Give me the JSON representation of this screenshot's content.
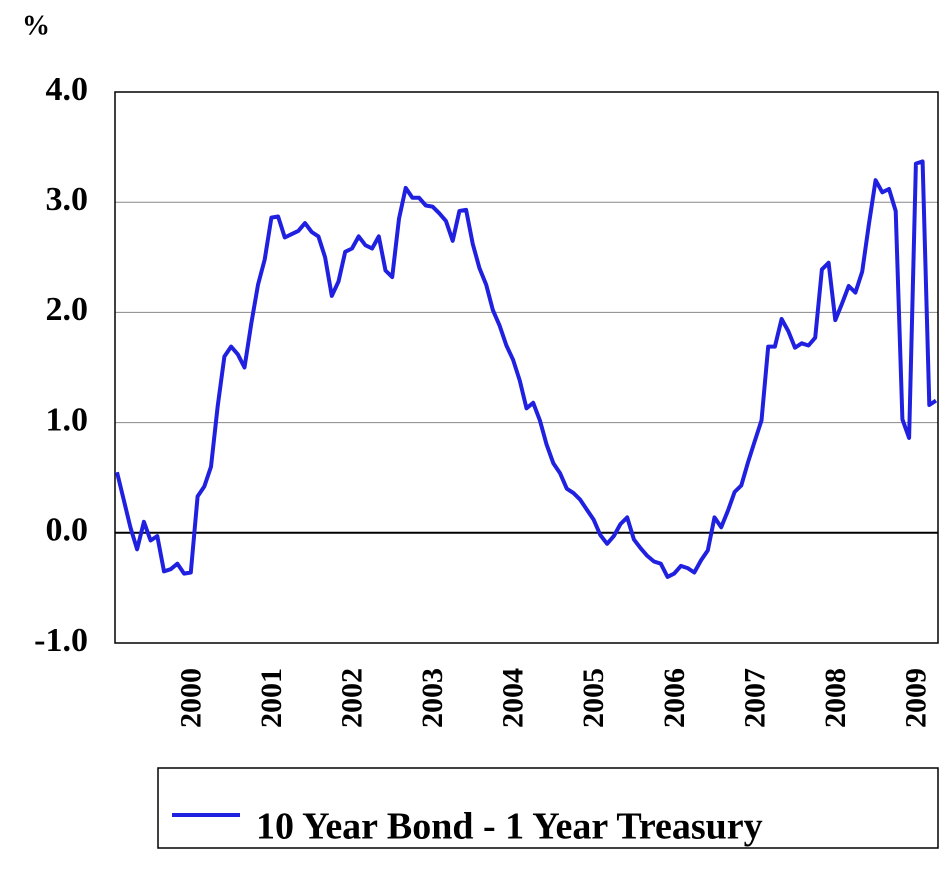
{
  "chart_data": {
    "type": "line",
    "ylabel": "%",
    "categories": [
      null,
      null,
      null,
      null,
      null,
      null,
      null,
      null,
      null,
      null,
      null,
      null,
      "2000",
      null,
      null,
      null,
      null,
      null,
      null,
      null,
      null,
      null,
      null,
      null,
      "2001",
      null,
      null,
      null,
      null,
      null,
      null,
      null,
      null,
      null,
      null,
      null,
      "2002",
      null,
      null,
      null,
      null,
      null,
      null,
      null,
      null,
      null,
      null,
      null,
      "2003",
      null,
      null,
      null,
      null,
      null,
      null,
      null,
      null,
      null,
      null,
      null,
      "2004",
      null,
      null,
      null,
      null,
      null,
      null,
      null,
      null,
      null,
      null,
      null,
      "2005",
      null,
      null,
      null,
      null,
      null,
      null,
      null,
      null,
      null,
      null,
      null,
      "2006",
      null,
      null,
      null,
      null,
      null,
      null,
      null,
      null,
      null,
      null,
      null,
      "2007",
      null,
      null,
      null,
      null,
      null,
      null,
      null,
      null,
      null,
      null,
      null,
      "2008",
      null,
      null,
      null,
      null,
      null,
      null,
      null,
      null,
      null,
      null,
      null,
      "2009",
      null,
      null
    ],
    "series": [
      {
        "name": "10 Year Bond - 1 Year Treasury",
        "color": "#2020e0",
        "values": [
          0.55,
          0.3,
          0.05,
          -0.15,
          0.1,
          -0.07,
          -0.03,
          -0.35,
          -0.33,
          -0.28,
          -0.37,
          -0.36,
          0.33,
          0.42,
          0.6,
          1.15,
          1.6,
          1.69,
          1.62,
          1.5,
          1.9,
          2.25,
          2.48,
          2.86,
          2.87,
          2.68,
          2.71,
          2.74,
          2.81,
          2.73,
          2.69,
          2.5,
          2.15,
          2.28,
          2.55,
          2.58,
          2.69,
          2.61,
          2.58,
          2.69,
          2.38,
          2.32,
          2.85,
          3.13,
          3.04,
          3.04,
          2.97,
          2.96,
          2.9,
          2.83,
          2.65,
          2.92,
          2.93,
          2.62,
          2.4,
          2.25,
          2.02,
          1.88,
          1.7,
          1.57,
          1.38,
          1.13,
          1.18,
          1.02,
          0.8,
          0.63,
          0.54,
          0.4,
          0.36,
          0.3,
          0.21,
          0.12,
          -0.02,
          -0.1,
          -0.03,
          0.08,
          0.14,
          -0.06,
          -0.14,
          -0.21,
          -0.26,
          -0.28,
          -0.4,
          -0.37,
          -0.3,
          -0.32,
          -0.36,
          -0.25,
          -0.16,
          0.14,
          0.05,
          0.2,
          0.37,
          0.43,
          0.64,
          0.83,
          1.02,
          1.69,
          1.69,
          1.94,
          1.83,
          1.68,
          1.72,
          1.7,
          1.77,
          2.39,
          2.45,
          1.93,
          2.08,
          2.24,
          2.18,
          2.37,
          2.8,
          3.2,
          3.09,
          3.12,
          2.92,
          1.03,
          0.86,
          3.35,
          3.37,
          1.16,
          1.2
        ]
      }
    ],
    "ylim": [
      -1,
      4
    ],
    "yticks": [
      {
        "value": -1,
        "label": "-1.0"
      },
      {
        "value": 0,
        "label": "0.0"
      },
      {
        "value": 1,
        "label": "1.0"
      },
      {
        "value": 2,
        "label": "2.0"
      },
      {
        "value": 3,
        "label": "3.0"
      },
      {
        "value": 4,
        "label": "4.0"
      }
    ],
    "grid": true
  }
}
